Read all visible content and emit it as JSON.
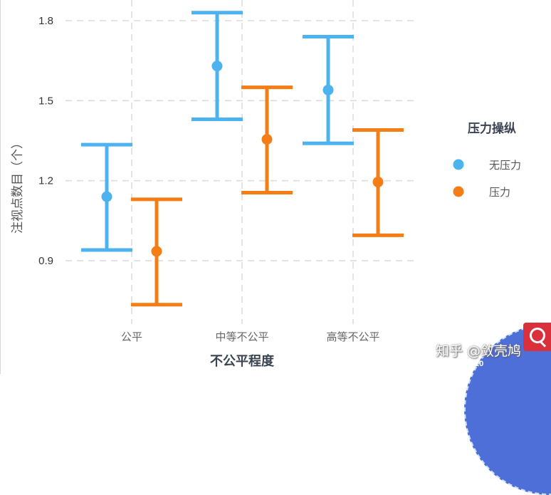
{
  "chart_data": {
    "type": "errorbar",
    "title": "",
    "xlabel": "不公平程度",
    "ylabel": "注视点数目（个）",
    "categories": [
      "公平",
      "中等不公平",
      "高等不公平"
    ],
    "ylim": [
      0.7,
      1.85
    ],
    "yticks": [
      0.9,
      1.2,
      1.5,
      1.8
    ],
    "ytick_labels": [
      "0.9",
      "1.2",
      "1.5",
      "1.8"
    ],
    "grid": true,
    "grid_style": "dashed",
    "legend": {
      "title": "压力操纵",
      "position": "right",
      "entries": [
        "无压力",
        "压力"
      ]
    },
    "series": [
      {
        "name": "无压力",
        "color": "#4db3f0",
        "values": [
          1.14,
          1.63,
          1.54
        ],
        "upper": [
          1.335,
          1.83,
          1.74
        ],
        "lower": [
          0.94,
          1.43,
          1.34
        ]
      },
      {
        "name": "压力",
        "color": "#f47d16",
        "values": [
          0.935,
          1.355,
          1.195
        ],
        "upper": [
          1.13,
          1.55,
          1.39
        ],
        "lower": [
          0.735,
          1.155,
          0.995
        ]
      }
    ]
  },
  "watermark": {
    "text": "知乎 @敛壳鸠",
    "badge_number": "10"
  }
}
